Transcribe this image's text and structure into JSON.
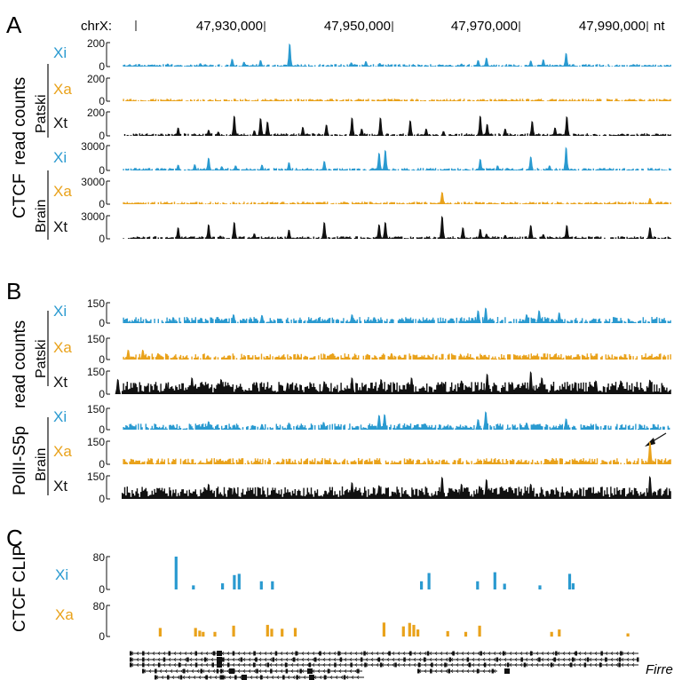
{
  "colors": {
    "xi": "#2a9ad0",
    "xa": "#e9a21b",
    "xt": "#111111",
    "gene": "#111111"
  },
  "coordinate_axis": {
    "chrom_label": "chrX:",
    "unit": "nt",
    "tick_labels": [
      "47,930,000",
      "47,950,000",
      "47,970,000",
      "47,990,000"
    ]
  },
  "panels": {
    "A": {
      "label": "A",
      "assay": "CTCF",
      "measure": "read counts"
    },
    "B": {
      "label": "B",
      "assay": "PolII-S5p",
      "measure": "read counts"
    },
    "C": {
      "label": "C",
      "assay": "CTCF CLIP"
    }
  },
  "groups": {
    "patski": "Patski",
    "brain": "Brain"
  },
  "tracks": {
    "xi": "Xi",
    "xa": "Xa",
    "xt": "Xt"
  },
  "y_ticks": {
    "zero": "0",
    "a_patski": "200",
    "a_brain": "3000",
    "b": "150",
    "c": "80"
  },
  "gene_label": "Firre",
  "chart_data": [
    {
      "type": "area",
      "panel": "A",
      "x_range": [
        47916000,
        47997000
      ],
      "x_unit": "nt",
      "series": [
        {
          "name": "Xi",
          "group": "Patski",
          "ylim": [
            0,
            200
          ],
          "peaks": [
            [
              47924200,
              25
            ],
            [
              47928900,
              28
            ],
            [
              47933500,
              65
            ],
            [
              47935200,
              40
            ],
            [
              47937600,
              55
            ],
            [
              47941800,
              195
            ],
            [
              47950700,
              35
            ],
            [
              47952800,
              45
            ],
            [
              47954800,
              30
            ],
            [
              47966600,
              25
            ],
            [
              47969000,
              55
            ],
            [
              47970200,
              75
            ],
            [
              47976600,
              50
            ],
            [
              47978400,
              60
            ],
            [
              47981700,
              115
            ]
          ]
        },
        {
          "name": "Xa",
          "group": "Patski",
          "ylim": [
            0,
            200
          ],
          "peaks": [
            [
              47927000,
              6
            ],
            [
              47937000,
              6
            ],
            [
              47953000,
              6
            ],
            [
              47975000,
              6
            ]
          ]
        },
        {
          "name": "Xt",
          "group": "Patski",
          "ylim": [
            0,
            200
          ],
          "peaks": [
            [
              47925700,
              70
            ],
            [
              47930100,
              50
            ],
            [
              47931500,
              35
            ],
            [
              47933800,
              170
            ],
            [
              47936700,
              45
            ],
            [
              47937600,
              150
            ],
            [
              47938600,
              120
            ],
            [
              47943700,
              75
            ],
            [
              47947100,
              95
            ],
            [
              47950800,
              155
            ],
            [
              47952200,
              60
            ],
            [
              47954900,
              155
            ],
            [
              47959200,
              130
            ],
            [
              47961500,
              60
            ],
            [
              47964000,
              40
            ],
            [
              47969300,
              170
            ],
            [
              47970300,
              100
            ],
            [
              47972900,
              60
            ],
            [
              47976800,
              125
            ],
            [
              47980100,
              70
            ],
            [
              47981800,
              165
            ]
          ]
        },
        {
          "name": "Xi",
          "group": "Brain",
          "ylim": [
            0,
            3000
          ],
          "peaks": [
            [
              47925700,
              700
            ],
            [
              47928100,
              750
            ],
            [
              47930100,
              1550
            ],
            [
              47932000,
              500
            ],
            [
              47934000,
              600
            ],
            [
              47937800,
              700
            ],
            [
              47941700,
              1000
            ],
            [
              47946800,
              1150
            ],
            [
              47954700,
              2150
            ],
            [
              47955600,
              2500
            ],
            [
              47969300,
              1400
            ],
            [
              47971800,
              600
            ],
            [
              47976600,
              1700
            ],
            [
              47979300,
              600
            ],
            [
              47981700,
              2850
            ]
          ]
        },
        {
          "name": "Xa",
          "group": "Brain",
          "ylim": [
            0,
            3000
          ],
          "peaks": [
            [
              47925700,
              100
            ],
            [
              47930100,
              80
            ],
            [
              47937500,
              60
            ],
            [
              47942400,
              120
            ],
            [
              47949800,
              60
            ],
            [
              47963800,
              1600
            ],
            [
              47980700,
              80
            ],
            [
              47993800,
              800
            ]
          ]
        },
        {
          "name": "Xt",
          "group": "Brain",
          "ylim": [
            0,
            3000
          ],
          "peaks": [
            [
              47925700,
              1500
            ],
            [
              47930100,
              1900
            ],
            [
              47931800,
              400
            ],
            [
              47933800,
              2200
            ],
            [
              47936700,
              700
            ],
            [
              47941700,
              1200
            ],
            [
              47946800,
              2200
            ],
            [
              47949400,
              300
            ],
            [
              47954700,
              1900
            ],
            [
              47955600,
              2200
            ],
            [
              47963800,
              3000
            ],
            [
              47966800,
              1500
            ],
            [
              47969300,
              1300
            ],
            [
              47970200,
              650
            ],
            [
              47972900,
              500
            ],
            [
              47976600,
              1800
            ],
            [
              47978400,
              600
            ],
            [
              47981800,
              1800
            ],
            [
              47993800,
              1500
            ]
          ]
        }
      ]
    },
    {
      "type": "area",
      "panel": "B",
      "x_range": [
        47916000,
        47997000
      ],
      "x_unit": "nt",
      "series": [
        {
          "name": "Xi",
          "group": "Patski",
          "ylim": [
            0,
            150
          ],
          "peaks": [
            [
              47925000,
              45
            ],
            [
              47929000,
              40
            ],
            [
              47933700,
              65
            ],
            [
              47937800,
              60
            ],
            [
              47946000,
              40
            ],
            [
              47950800,
              65
            ],
            [
              47954000,
              45
            ],
            [
              47959000,
              35
            ],
            [
              47969000,
              95
            ],
            [
              47970100,
              115
            ],
            [
              47976000,
              65
            ],
            [
              47977800,
              95
            ],
            [
              47980700,
              80
            ]
          ]
        },
        {
          "name": "Xa",
          "group": "Patski",
          "ylim": [
            0,
            150
          ],
          "peaks": [
            [
              47918500,
              70
            ],
            [
              47920600,
              70
            ],
            [
              47922800,
              45
            ],
            [
              47930000,
              30
            ],
            [
              47943000,
              35
            ],
            [
              47948000,
              45
            ],
            [
              47953000,
              40
            ],
            [
              47956500,
              45
            ],
            [
              47966500,
              35
            ],
            [
              47975000,
              25
            ],
            [
              47980000,
              30
            ]
          ]
        },
        {
          "name": "Xt",
          "group": "Patski",
          "ylim": [
            0,
            150
          ],
          "peaks": [
            [
              47917000,
              100
            ],
            [
              47919500,
              75
            ],
            [
              47924000,
              75
            ],
            [
              47927700,
              110
            ],
            [
              47931900,
              100
            ],
            [
              47937000,
              80
            ],
            [
              47941500,
              75
            ],
            [
              47946800,
              85
            ],
            [
              47950800,
              110
            ],
            [
              47955000,
              100
            ],
            [
              47959400,
              110
            ],
            [
              47964000,
              75
            ],
            [
              47966600,
              90
            ],
            [
              47970300,
              135
            ],
            [
              47973900,
              80
            ],
            [
              47976600,
              155
            ],
            [
              47978200,
              110
            ],
            [
              47983000,
              80
            ],
            [
              47986000,
              90
            ],
            [
              47989600,
              90
            ],
            [
              47993800,
              95
            ]
          ]
        },
        {
          "name": "Xi",
          "group": "Brain",
          "ylim": [
            0,
            150
          ],
          "peaks": [
            [
              47925000,
              35
            ],
            [
              47930100,
              60
            ],
            [
              47933800,
              35
            ],
            [
              47937800,
              40
            ],
            [
              47941700,
              50
            ],
            [
              47946700,
              55
            ],
            [
              47954700,
              105
            ],
            [
              47955500,
              110
            ],
            [
              47965000,
              30
            ],
            [
              47969000,
              75
            ],
            [
              47970100,
              130
            ],
            [
              47976000,
              50
            ],
            [
              47977800,
              40
            ],
            [
              47981700,
              80
            ]
          ]
        },
        {
          "name": "Xa",
          "group": "Brain",
          "ylim": [
            0,
            150
          ],
          "peaks": [
            [
              47920000,
              25
            ],
            [
              47925000,
              20
            ],
            [
              47930000,
              20
            ],
            [
              47937000,
              25
            ],
            [
              47946000,
              20
            ],
            [
              47954700,
              30
            ],
            [
              47963000,
              20
            ],
            [
              47970000,
              25
            ],
            [
              47979000,
              20
            ],
            [
              47993800,
              150
            ]
          ]
        },
        {
          "name": "Xt",
          "group": "Brain",
          "ylim": [
            0,
            150
          ],
          "peaks": [
            [
              47925000,
              40
            ],
            [
              47930100,
              100
            ],
            [
              47931500,
              30
            ],
            [
              47933800,
              75
            ],
            [
              47938000,
              45
            ],
            [
              47941800,
              45
            ],
            [
              47947000,
              55
            ],
            [
              47950800,
              110
            ],
            [
              47954700,
              90
            ],
            [
              47957000,
              45
            ],
            [
              47963800,
              145
            ],
            [
              47966600,
              100
            ],
            [
              47969200,
              85
            ],
            [
              47970200,
              130
            ],
            [
              47973000,
              40
            ],
            [
              47976600,
              100
            ],
            [
              47979000,
              55
            ],
            [
              47983000,
              40
            ],
            [
              47993800,
              160
            ]
          ]
        }
      ]
    },
    {
      "type": "bar",
      "panel": "C",
      "x_range": [
        47916000,
        47997000
      ],
      "x_unit": "nt",
      "series": [
        {
          "name": "Xi",
          "ylim": [
            0,
            80
          ],
          "bars": [
            [
              47925400,
              80
            ],
            [
              47927900,
              10
            ],
            [
              47932100,
              15
            ],
            [
              47933800,
              35
            ],
            [
              47934500,
              38
            ],
            [
              47937700,
              20
            ],
            [
              47939300,
              20
            ],
            [
              47960800,
              20
            ],
            [
              47961900,
              40
            ],
            [
              47968900,
              20
            ],
            [
              47971400,
              42
            ],
            [
              47972800,
              14
            ],
            [
              47977900,
              10
            ],
            [
              47982200,
              38
            ],
            [
              47982700,
              15
            ]
          ]
        },
        {
          "name": "Xa",
          "ylim": [
            0,
            80
          ],
          "bars": [
            [
              47923100,
              22
            ],
            [
              47928200,
              22
            ],
            [
              47928800,
              15
            ],
            [
              47929300,
              12
            ],
            [
              47931000,
              12
            ],
            [
              47933700,
              28
            ],
            [
              47938600,
              30
            ],
            [
              47939200,
              20
            ],
            [
              47940700,
              20
            ],
            [
              47942600,
              22
            ],
            [
              47955400,
              36
            ],
            [
              47958200,
              26
            ],
            [
              47959100,
              35
            ],
            [
              47959700,
              30
            ],
            [
              47960300,
              18
            ],
            [
              47964600,
              14
            ],
            [
              47967200,
              12
            ],
            [
              47969200,
              28
            ],
            [
              47979600,
              12
            ],
            [
              47980700,
              18
            ],
            [
              47990600,
              8
            ]
          ]
        }
      ]
    }
  ]
}
